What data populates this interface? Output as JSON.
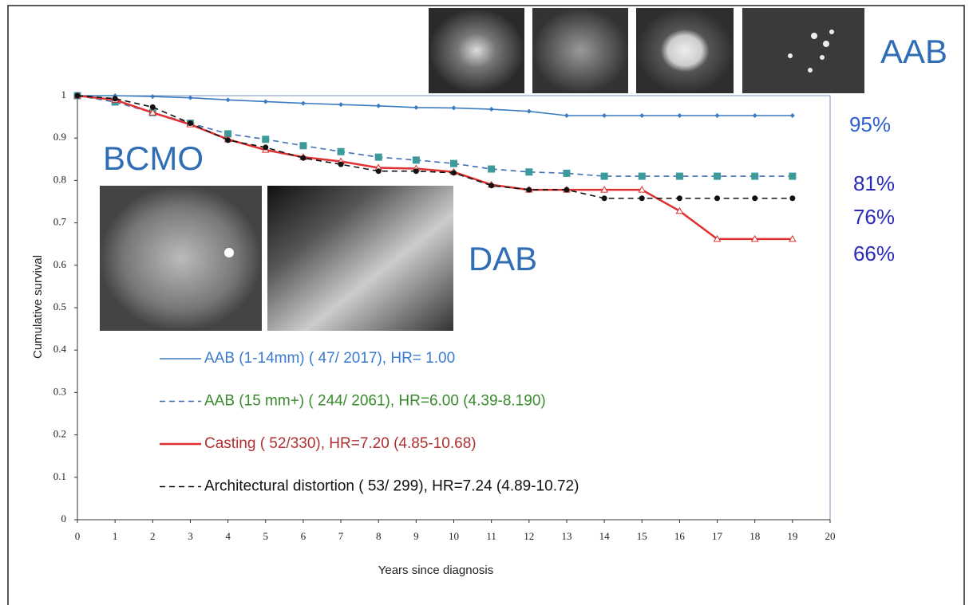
{
  "chart_data": {
    "type": "line",
    "xlabel": "Years since diagnosis",
    "ylabel": "Cumulative survival",
    "x": [
      0,
      1,
      2,
      3,
      4,
      5,
      6,
      7,
      8,
      9,
      10,
      11,
      12,
      13,
      14,
      15,
      16,
      17,
      18,
      19
    ],
    "series": [
      {
        "name": "AAB (1-14mm)  ( 47/ 2017), HR= 1.00",
        "color": "#3a7bbf",
        "text_color": "#3a7bd0",
        "marker": "diamond",
        "dashed": false,
        "values": [
          1,
          1.0,
          0.998,
          0.995,
          0.99,
          0.986,
          0.982,
          0.979,
          0.976,
          0.972,
          0.971,
          0.968,
          0.963,
          0.953,
          0.953,
          0.953,
          0.953,
          0.953,
          0.953,
          0.953
        ]
      },
      {
        "name": "AAB (15 mm+)  ( 244/ 2061), HR=6.00 (4.39-8.190)",
        "color": "#3f6fb5",
        "text_color": "#3a8a2e",
        "marker": "square",
        "dashed": true,
        "values": [
          1,
          0.985,
          0.96,
          0.935,
          0.91,
          0.897,
          0.882,
          0.868,
          0.855,
          0.848,
          0.84,
          0.827,
          0.82,
          0.817,
          0.81,
          0.81,
          0.81,
          0.81,
          0.81,
          0.81
        ]
      },
      {
        "name": "Casting ( 52/330), HR=7.20 (4.85-10.68)",
        "color": "#e03030",
        "text_color": "#b03030",
        "marker": "triangle",
        "dashed": false,
        "values": [
          1,
          0.99,
          0.96,
          0.932,
          0.897,
          0.872,
          0.855,
          0.845,
          0.83,
          0.828,
          0.82,
          0.79,
          0.778,
          0.778,
          0.778,
          0.778,
          0.728,
          0.662,
          0.662,
          0.662
        ]
      },
      {
        "name": "Architectural distortion ( 53/ 299), HR=7.24 (4.89-10.72)",
        "color": "#111111",
        "text_color": "#111111",
        "marker": "dot",
        "dashed": true,
        "values": [
          1,
          0.993,
          0.973,
          0.935,
          0.895,
          0.878,
          0.853,
          0.838,
          0.822,
          0.822,
          0.818,
          0.788,
          0.778,
          0.778,
          0.758,
          0.758,
          0.758,
          0.758,
          0.758,
          0.758
        ]
      }
    ],
    "xlim": [
      0,
      20
    ],
    "xticks": [
      0,
      1,
      2,
      3,
      4,
      5,
      6,
      7,
      8,
      9,
      10,
      11,
      12,
      13,
      14,
      15,
      16,
      17,
      18,
      19,
      20
    ],
    "ylim": [
      0,
      1
    ],
    "yticks": [
      0,
      0.1,
      0.2,
      0.3,
      0.4,
      0.5,
      0.6,
      0.7,
      0.8,
      0.9,
      1
    ],
    "annotations": [
      "AAB",
      "BCMO",
      "DAB",
      "95%",
      "81%",
      "76%",
      "66%"
    ]
  }
}
